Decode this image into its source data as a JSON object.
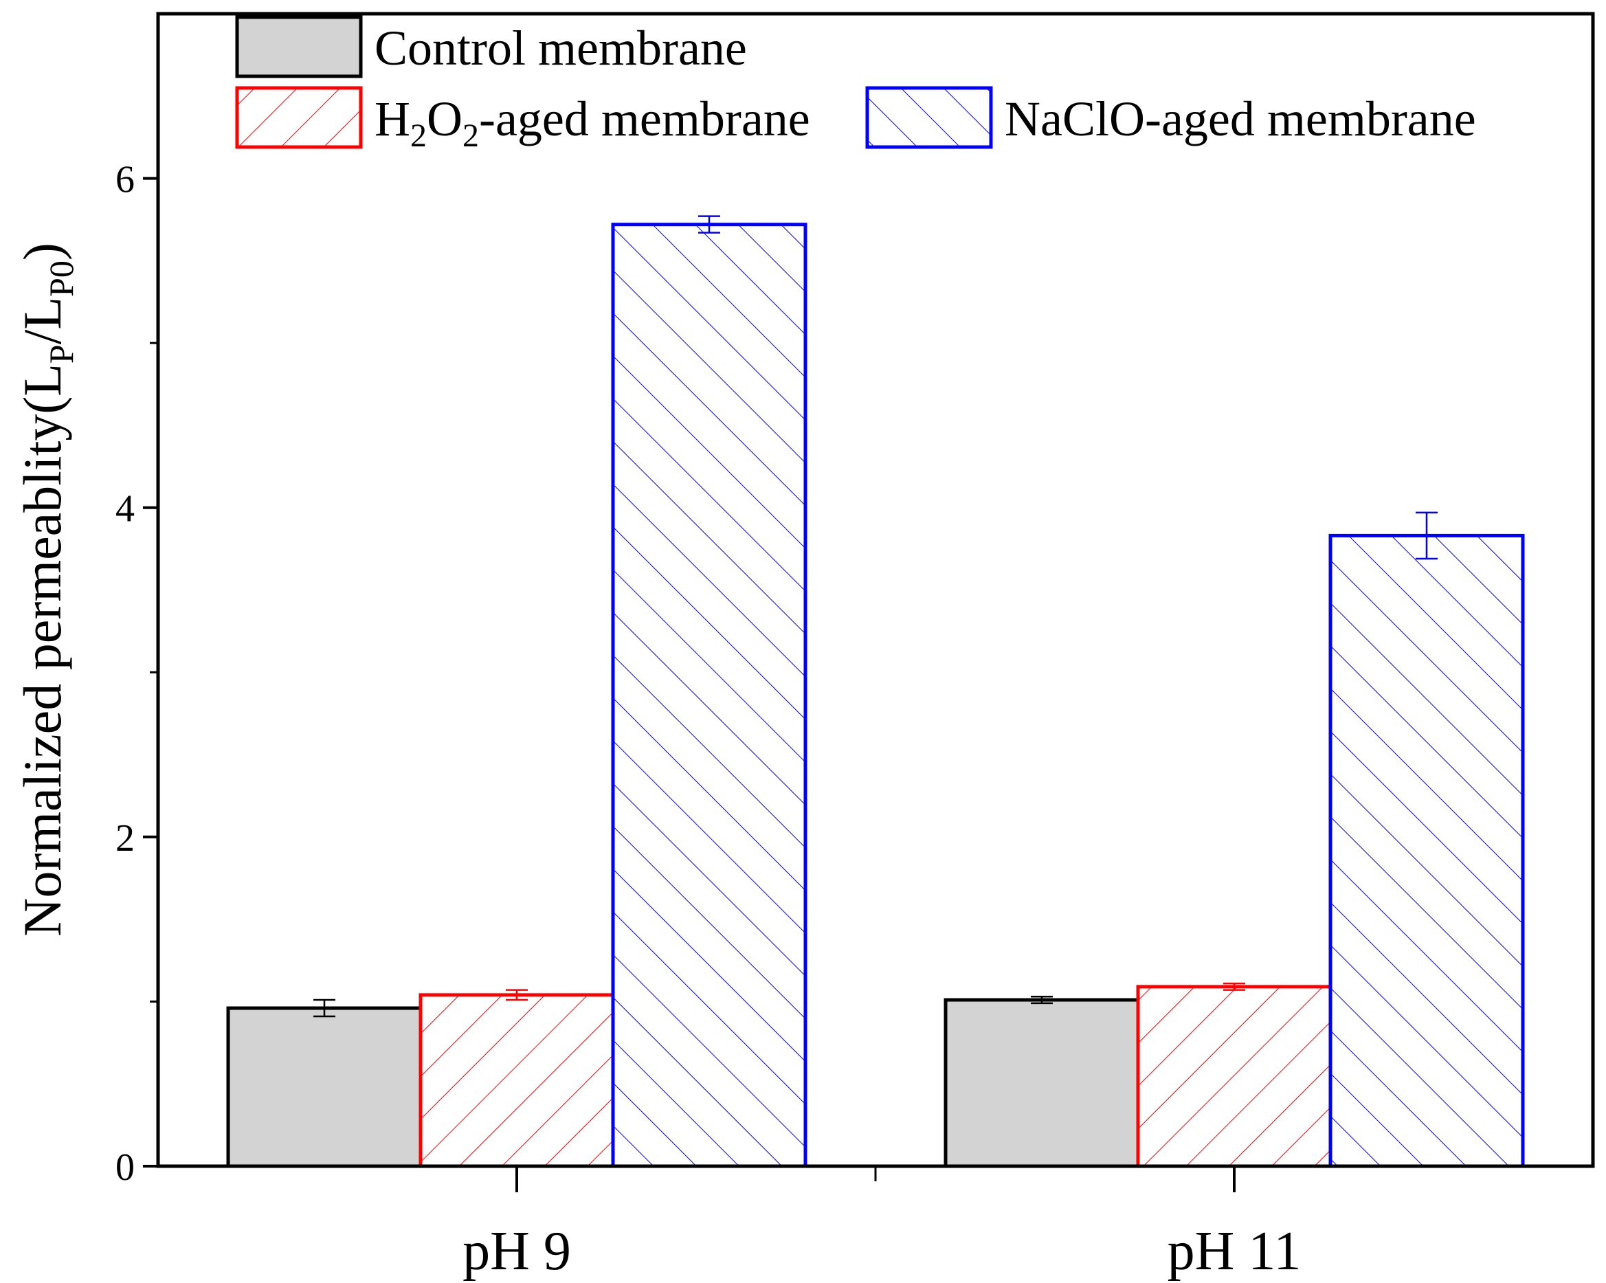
{
  "chart_data": {
    "type": "bar",
    "categories": [
      "pH 9",
      "pH 11"
    ],
    "ylabel": {
      "main": "Normalized permeablity(L",
      "sub1": "P",
      "mid": "/L",
      "sub2": "P0",
      "end": ")"
    },
    "ylim": [
      0,
      7
    ],
    "yticks": [
      "0",
      "2",
      "4",
      "6"
    ],
    "grid": false,
    "legend_position": "top-left",
    "series": [
      {
        "name": "Control membrane",
        "legend_parts": [
          {
            "t": "Control membrane",
            "sub": false
          }
        ],
        "values": [
          0.96,
          1.01
        ],
        "errors": [
          0.05,
          0.02
        ],
        "color": "#000000",
        "fill": "#d3d3d3",
        "pattern": "solid"
      },
      {
        "name": "H2O2-aged membrane",
        "legend_parts": [
          {
            "t": "H",
            "sub": false
          },
          {
            "t": "2",
            "sub": true
          },
          {
            "t": "O",
            "sub": false
          },
          {
            "t": "2",
            "sub": true
          },
          {
            "t": "-aged membrane",
            "sub": false
          }
        ],
        "values": [
          1.04,
          1.09
        ],
        "errors": [
          0.03,
          0.02
        ],
        "color": "#ff0000",
        "fill": "#ffffff",
        "pattern": "forward-hatch"
      },
      {
        "name": "NaClO-aged membrane",
        "legend_parts": [
          {
            "t": "NaClO-aged membrane",
            "sub": false
          }
        ],
        "values": [
          5.72,
          3.83
        ],
        "errors": [
          0.05,
          0.14
        ],
        "color": "#0000ff",
        "fill": "#ffffff",
        "pattern": "back-hatch"
      }
    ]
  }
}
